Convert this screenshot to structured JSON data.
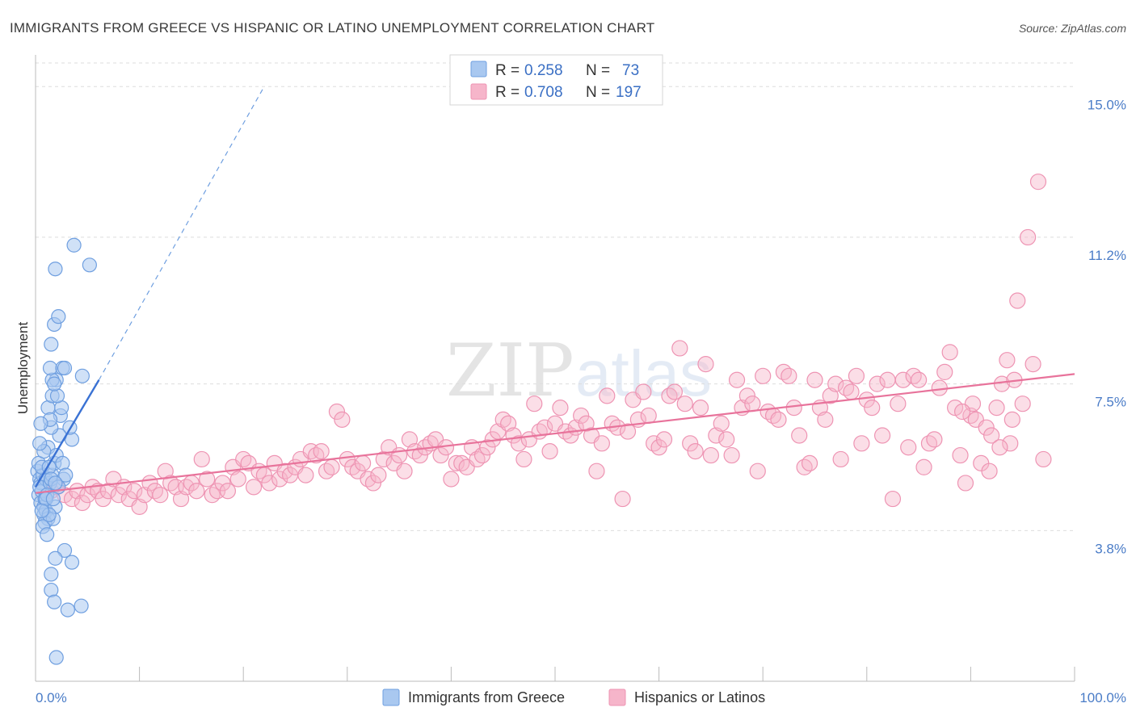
{
  "title": "IMMIGRANTS FROM GREECE VS HISPANIC OR LATINO UNEMPLOYMENT CORRELATION CHART",
  "source": "Source: ZipAtlas.com",
  "watermark": {
    "zip": "ZIP",
    "atlas": "atlas"
  },
  "colors": {
    "blue_fill": "#a9c8f0",
    "blue_stroke": "#6f9fe0",
    "blue_line": "#3a72d4",
    "pink_fill": "#f6b5ca",
    "pink_stroke": "#ee94b3",
    "pink_line": "#e8739b",
    "tick_label": "#4a7cc7",
    "grid": "#dddddd"
  },
  "legend": {
    "rows": [
      {
        "r_label": "R =",
        "r_value": "0.258",
        "n_label": "N =",
        "n_value": "73"
      },
      {
        "r_label": "R =",
        "r_value": "0.708",
        "n_label": "N =",
        "n_value": "197"
      }
    ]
  },
  "bottom_legend": [
    "Immigrants from Greece",
    "Hispanics or Latinos"
  ],
  "chart_data": {
    "type": "scatter",
    "xlabel": "",
    "ylabel": "Unemployment",
    "xlim": [
      0,
      100
    ],
    "ylim": [
      0,
      15.8
    ],
    "x_tick_labels": [
      "0.0%",
      "100.0%"
    ],
    "y_ticks": [
      3.8,
      7.5,
      11.2,
      15.0
    ],
    "y_tick_labels": [
      "3.8%",
      "7.5%",
      "11.2%",
      "15.0%"
    ],
    "series": [
      {
        "name": "Immigrants from Greece",
        "trend": {
          "x0": 0,
          "y0": 4.9,
          "x1": 6.1,
          "y1": 7.6,
          "dash_x1": 22,
          "dash_y1": 15.0
        },
        "points": [
          [
            0.2,
            5.3
          ],
          [
            0.3,
            4.7
          ],
          [
            0.4,
            5.1
          ],
          [
            0.5,
            4.5
          ],
          [
            0.5,
            5.0
          ],
          [
            0.6,
            4.8
          ],
          [
            0.7,
            5.2
          ],
          [
            0.8,
            4.4
          ],
          [
            0.9,
            4.6
          ],
          [
            1.0,
            5.1
          ],
          [
            0.3,
            5.5
          ],
          [
            0.4,
            4.9
          ],
          [
            0.6,
            5.4
          ],
          [
            0.8,
            4.2
          ],
          [
            1.0,
            4.3
          ],
          [
            1.2,
            4.1
          ],
          [
            1.4,
            5.0
          ],
          [
            1.6,
            5.2
          ],
          [
            1.1,
            4.7
          ],
          [
            0.9,
            4.0
          ],
          [
            0.7,
            3.9
          ],
          [
            1.1,
            3.7
          ],
          [
            1.7,
            4.1
          ],
          [
            1.8,
            5.5
          ],
          [
            1.3,
            5.4
          ],
          [
            1.5,
            5.1
          ],
          [
            1.2,
            5.9
          ],
          [
            2.0,
            5.7
          ],
          [
            2.6,
            5.5
          ],
          [
            2.7,
            5.1
          ],
          [
            2.2,
            4.9
          ],
          [
            1.9,
            4.4
          ],
          [
            2.9,
            5.2
          ],
          [
            3.5,
            6.1
          ],
          [
            3.3,
            6.4
          ],
          [
            2.3,
            6.2
          ],
          [
            2.4,
            6.7
          ],
          [
            2.5,
            6.9
          ],
          [
            1.5,
            6.4
          ],
          [
            1.2,
            6.9
          ],
          [
            1.4,
            6.6
          ],
          [
            1.6,
            7.2
          ],
          [
            2.1,
            7.2
          ],
          [
            2.0,
            7.6
          ],
          [
            1.6,
            7.6
          ],
          [
            1.4,
            7.9
          ],
          [
            2.6,
            7.9
          ],
          [
            2.8,
            7.9
          ],
          [
            4.5,
            7.7
          ],
          [
            1.8,
            7.5
          ],
          [
            1.5,
            8.5
          ],
          [
            1.8,
            9.0
          ],
          [
            2.2,
            9.2
          ],
          [
            1.9,
            10.4
          ],
          [
            3.7,
            11.0
          ],
          [
            5.2,
            10.5
          ],
          [
            2.8,
            3.3
          ],
          [
            1.9,
            3.1
          ],
          [
            3.5,
            3.0
          ],
          [
            1.5,
            2.7
          ],
          [
            1.5,
            2.3
          ],
          [
            1.8,
            2.0
          ],
          [
            3.1,
            1.8
          ],
          [
            4.4,
            1.9
          ],
          [
            2.0,
            0.6
          ],
          [
            0.5,
            6.5
          ],
          [
            0.8,
            5.8
          ],
          [
            1.3,
            4.2
          ],
          [
            1.0,
            4.6
          ],
          [
            0.6,
            4.3
          ],
          [
            1.7,
            4.6
          ],
          [
            0.4,
            6.0
          ],
          [
            1.9,
            5.0
          ]
        ]
      },
      {
        "name": "Hispanics or Latinos",
        "trend": {
          "x0": 0,
          "y0": 4.75,
          "x1": 100,
          "y1": 7.75
        },
        "points": [
          [
            1.5,
            4.8
          ],
          [
            2.0,
            4.9
          ],
          [
            2.8,
            4.7
          ],
          [
            3.5,
            4.6
          ],
          [
            4.0,
            4.8
          ],
          [
            4.5,
            4.5
          ],
          [
            5.0,
            4.7
          ],
          [
            5.5,
            4.9
          ],
          [
            6.0,
            4.8
          ],
          [
            6.5,
            4.6
          ],
          [
            7.0,
            4.8
          ],
          [
            7.5,
            5.1
          ],
          [
            8.0,
            4.7
          ],
          [
            8.5,
            4.9
          ],
          [
            9.0,
            4.6
          ],
          [
            9.5,
            4.8
          ],
          [
            10.0,
            4.4
          ],
          [
            10.5,
            4.7
          ],
          [
            11.0,
            5.0
          ],
          [
            11.5,
            4.8
          ],
          [
            12.0,
            4.7
          ],
          [
            12.5,
            5.3
          ],
          [
            13.0,
            5.0
          ],
          [
            13.5,
            4.9
          ],
          [
            14.0,
            4.6
          ],
          [
            14.5,
            4.9
          ],
          [
            15.0,
            5.0
          ],
          [
            15.5,
            4.8
          ],
          [
            16.0,
            5.6
          ],
          [
            16.5,
            5.1
          ],
          [
            17.0,
            4.7
          ],
          [
            17.5,
            4.8
          ],
          [
            18.0,
            5.0
          ],
          [
            18.5,
            4.8
          ],
          [
            19.0,
            5.4
          ],
          [
            19.5,
            5.1
          ],
          [
            20.0,
            5.6
          ],
          [
            20.5,
            5.5
          ],
          [
            21.0,
            4.9
          ],
          [
            21.5,
            5.3
          ],
          [
            22.0,
            5.2
          ],
          [
            22.5,
            5.0
          ],
          [
            23.0,
            5.5
          ],
          [
            23.5,
            5.1
          ],
          [
            24.0,
            5.3
          ],
          [
            24.5,
            5.2
          ],
          [
            25.0,
            5.4
          ],
          [
            25.5,
            5.6
          ],
          [
            26.0,
            5.2
          ],
          [
            26.5,
            5.8
          ],
          [
            27.0,
            5.7
          ],
          [
            27.5,
            5.8
          ],
          [
            28.0,
            5.3
          ],
          [
            28.5,
            5.4
          ],
          [
            29.0,
            6.8
          ],
          [
            29.5,
            6.6
          ],
          [
            30.0,
            5.6
          ],
          [
            30.5,
            5.4
          ],
          [
            31.0,
            5.3
          ],
          [
            31.5,
            5.5
          ],
          [
            32.0,
            5.1
          ],
          [
            32.5,
            5.0
          ],
          [
            33.0,
            5.2
          ],
          [
            33.5,
            5.6
          ],
          [
            34.0,
            5.9
          ],
          [
            34.5,
            5.5
          ],
          [
            35.0,
            5.7
          ],
          [
            35.5,
            5.3
          ],
          [
            36.0,
            6.1
          ],
          [
            36.5,
            5.8
          ],
          [
            37.0,
            5.7
          ],
          [
            37.5,
            5.9
          ],
          [
            38.0,
            6.0
          ],
          [
            38.5,
            6.1
          ],
          [
            39.0,
            5.7
          ],
          [
            39.5,
            5.9
          ],
          [
            40.0,
            5.1
          ],
          [
            40.5,
            5.5
          ],
          [
            41.0,
            5.5
          ],
          [
            41.5,
            5.4
          ],
          [
            42.0,
            5.9
          ],
          [
            42.5,
            5.6
          ],
          [
            43.0,
            5.7
          ],
          [
            43.5,
            5.9
          ],
          [
            44.0,
            6.1
          ],
          [
            44.5,
            6.3
          ],
          [
            45.0,
            6.6
          ],
          [
            45.5,
            6.5
          ],
          [
            46.0,
            6.2
          ],
          [
            46.5,
            6.0
          ],
          [
            47.0,
            5.6
          ],
          [
            47.5,
            6.1
          ],
          [
            48.0,
            7.0
          ],
          [
            48.5,
            6.3
          ],
          [
            49.0,
            6.4
          ],
          [
            49.5,
            5.8
          ],
          [
            50.0,
            6.5
          ],
          [
            50.5,
            6.9
          ],
          [
            51.0,
            6.3
          ],
          [
            51.5,
            6.2
          ],
          [
            52.0,
            6.4
          ],
          [
            52.5,
            6.7
          ],
          [
            53.0,
            6.5
          ],
          [
            53.5,
            6.2
          ],
          [
            54.0,
            5.3
          ],
          [
            54.5,
            6.0
          ],
          [
            55.0,
            7.2
          ],
          [
            55.5,
            6.5
          ],
          [
            56.0,
            6.4
          ],
          [
            56.5,
            4.6
          ],
          [
            57.0,
            6.3
          ],
          [
            57.5,
            7.1
          ],
          [
            58.0,
            6.6
          ],
          [
            58.5,
            7.3
          ],
          [
            59.0,
            6.7
          ],
          [
            59.5,
            6.0
          ],
          [
            60.0,
            5.9
          ],
          [
            60.5,
            6.1
          ],
          [
            61.0,
            7.2
          ],
          [
            61.5,
            7.3
          ],
          [
            62.0,
            8.4
          ],
          [
            62.5,
            7.0
          ],
          [
            63.0,
            6.0
          ],
          [
            63.5,
            5.8
          ],
          [
            64.0,
            6.9
          ],
          [
            64.5,
            8.0
          ],
          [
            65.0,
            5.7
          ],
          [
            65.5,
            6.2
          ],
          [
            66.0,
            6.5
          ],
          [
            66.5,
            6.1
          ],
          [
            67.0,
            5.7
          ],
          [
            67.5,
            7.6
          ],
          [
            68.0,
            6.9
          ],
          [
            68.5,
            7.2
          ],
          [
            69.0,
            7.0
          ],
          [
            69.5,
            5.3
          ],
          [
            70.0,
            7.7
          ],
          [
            70.5,
            6.8
          ],
          [
            71.0,
            6.7
          ],
          [
            71.5,
            6.6
          ],
          [
            72.0,
            7.8
          ],
          [
            72.5,
            7.7
          ],
          [
            73.0,
            6.9
          ],
          [
            73.5,
            6.2
          ],
          [
            74.0,
            5.4
          ],
          [
            74.5,
            5.5
          ],
          [
            75.0,
            7.6
          ],
          [
            75.5,
            6.9
          ],
          [
            76.0,
            6.6
          ],
          [
            76.5,
            7.2
          ],
          [
            77.0,
            7.5
          ],
          [
            77.5,
            5.6
          ],
          [
            78.0,
            7.4
          ],
          [
            78.5,
            7.3
          ],
          [
            79.0,
            7.7
          ],
          [
            79.5,
            6.0
          ],
          [
            80.0,
            7.1
          ],
          [
            80.5,
            6.9
          ],
          [
            81.0,
            7.5
          ],
          [
            81.5,
            6.2
          ],
          [
            82.0,
            7.6
          ],
          [
            82.5,
            4.6
          ],
          [
            83.0,
            7.0
          ],
          [
            83.5,
            7.6
          ],
          [
            84.0,
            5.9
          ],
          [
            84.5,
            7.7
          ],
          [
            85.0,
            7.6
          ],
          [
            85.5,
            5.4
          ],
          [
            86.0,
            6.0
          ],
          [
            86.5,
            6.1
          ],
          [
            87.0,
            7.4
          ],
          [
            87.5,
            7.8
          ],
          [
            88.0,
            8.3
          ],
          [
            88.5,
            6.9
          ],
          [
            89.0,
            5.7
          ],
          [
            89.5,
            5.0
          ],
          [
            90.0,
            6.7
          ],
          [
            90.5,
            6.6
          ],
          [
            91.0,
            5.5
          ],
          [
            91.5,
            6.4
          ],
          [
            92.0,
            6.2
          ],
          [
            92.5,
            6.9
          ],
          [
            93.0,
            7.5
          ],
          [
            93.5,
            8.1
          ],
          [
            94.0,
            6.6
          ],
          [
            94.5,
            9.6
          ],
          [
            95.5,
            11.2
          ],
          [
            96.5,
            12.6
          ],
          [
            97.0,
            5.6
          ],
          [
            95.0,
            7.0
          ],
          [
            93.8,
            6.0
          ],
          [
            96.0,
            8.0
          ],
          [
            94.2,
            7.6
          ],
          [
            90.2,
            7.0
          ],
          [
            91.8,
            5.3
          ],
          [
            92.8,
            5.9
          ],
          [
            89.2,
            6.8
          ]
        ]
      }
    ]
  }
}
